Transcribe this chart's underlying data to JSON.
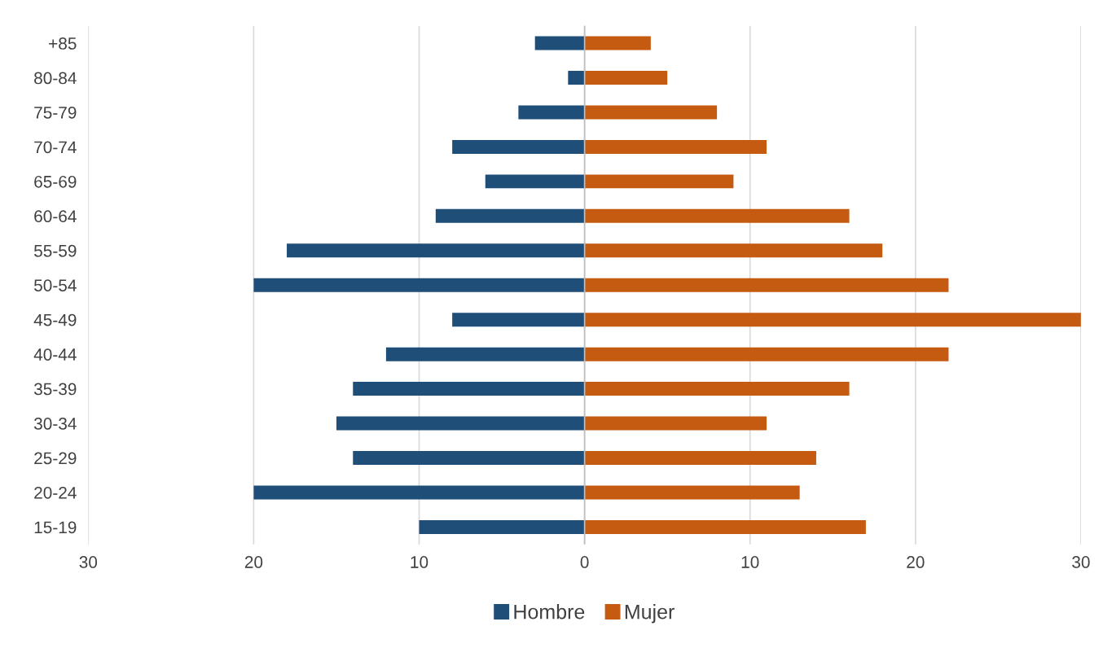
{
  "chart_data": {
    "type": "bar",
    "orientation": "horizontal",
    "categories": [
      "+85",
      "80-84",
      "75-79",
      "70-74",
      "65-69",
      "60-64",
      "55-59",
      "50-54",
      "45-49",
      "40-44",
      "35-39",
      "30-34",
      "25-29",
      "20-24",
      "15-19"
    ],
    "series": [
      {
        "name": "Hombre",
        "color": "#1f4e79",
        "values": [
          -3,
          -1,
          -4,
          -8,
          -6,
          -9,
          -18,
          -20,
          -8,
          -12,
          -14,
          -15,
          -14,
          -20,
          -10
        ]
      },
      {
        "name": "Mujer",
        "color": "#c55a11",
        "values": [
          4,
          5,
          8,
          11,
          9,
          16,
          18,
          22,
          30,
          22,
          16,
          11,
          14,
          13,
          17
        ]
      }
    ],
    "xlim": [
      -30,
      30
    ],
    "xticks": [
      {
        "value": -30,
        "label": "30"
      },
      {
        "value": -20,
        "label": "20"
      },
      {
        "value": -10,
        "label": "10"
      },
      0,
      10,
      20,
      30
    ],
    "grid": "x",
    "legend": "bottom",
    "stacked": true
  }
}
